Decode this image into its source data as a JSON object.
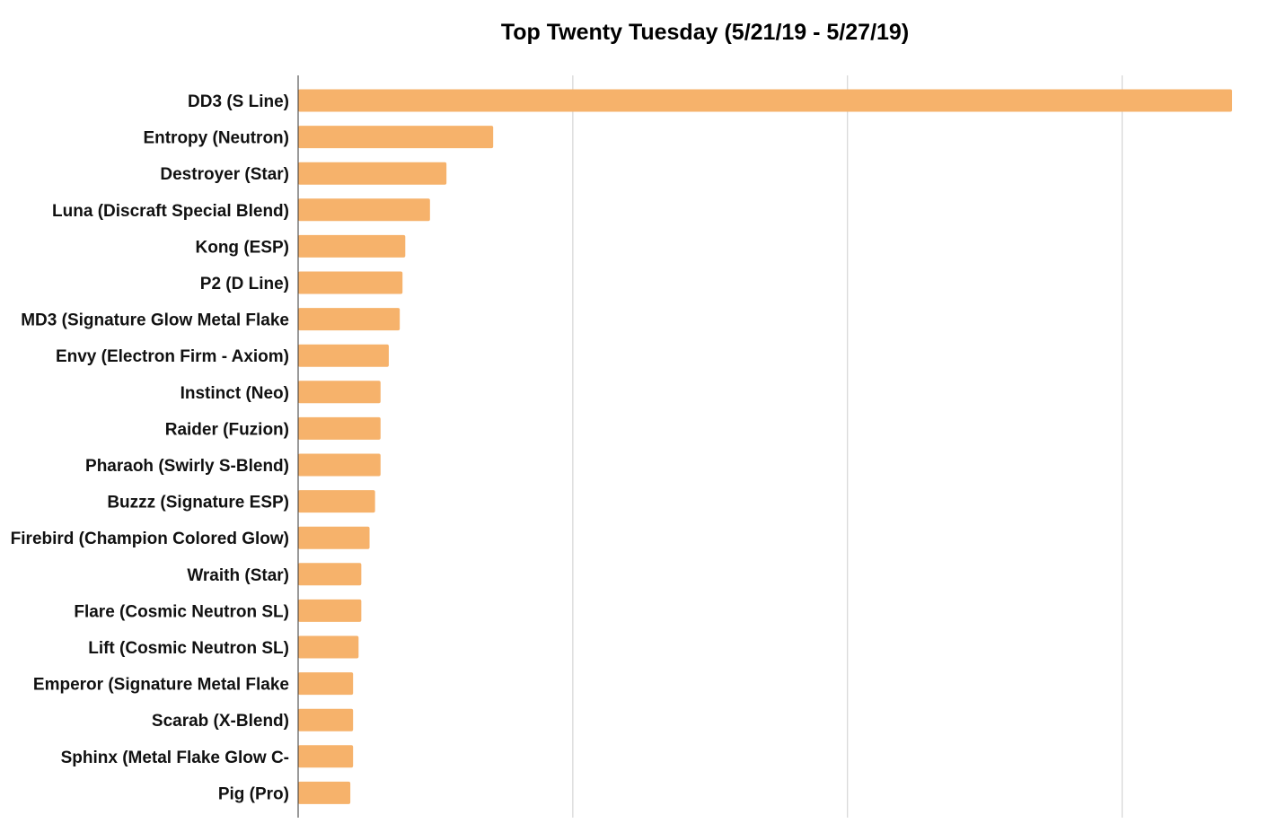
{
  "chart_data": {
    "type": "bar",
    "orientation": "horizontal",
    "title": "Top Twenty Tuesday (5/21/19 - 5/27/19)",
    "xlabel": "",
    "ylabel": "",
    "xlim": [
      0,
      340
    ],
    "grid": true,
    "bar_color": "#F6B26B",
    "categories": [
      "DD3 (S Line)",
      "Entropy (Neutron)",
      "Destroyer (Star)",
      "Luna (Discraft Special Blend)",
      "Kong (ESP)",
      "P2 (D Line)",
      "MD3 (Signature Glow Metal Flake",
      "Envy (Electron Firm - Axiom)",
      "Instinct (Neo)",
      "Raider (Fuzion)",
      "Pharaoh (Swirly S-Blend)",
      "Buzzz (Signature ESP)",
      "Firebird (Champion Colored Glow)",
      "Wraith (Star)",
      "Flare (Cosmic Neutron SL)",
      "Lift (Cosmic Neutron SL)",
      "Emperor (Signature Metal Flake",
      "Scarab (X-Blend)",
      "Sphinx (Metal Flake Glow C-",
      "Pig (Pro)"
    ],
    "values": [
      340,
      71,
      54,
      48,
      39,
      38,
      37,
      33,
      30,
      30,
      30,
      28,
      26,
      23,
      23,
      22,
      20,
      20,
      20,
      19
    ]
  }
}
